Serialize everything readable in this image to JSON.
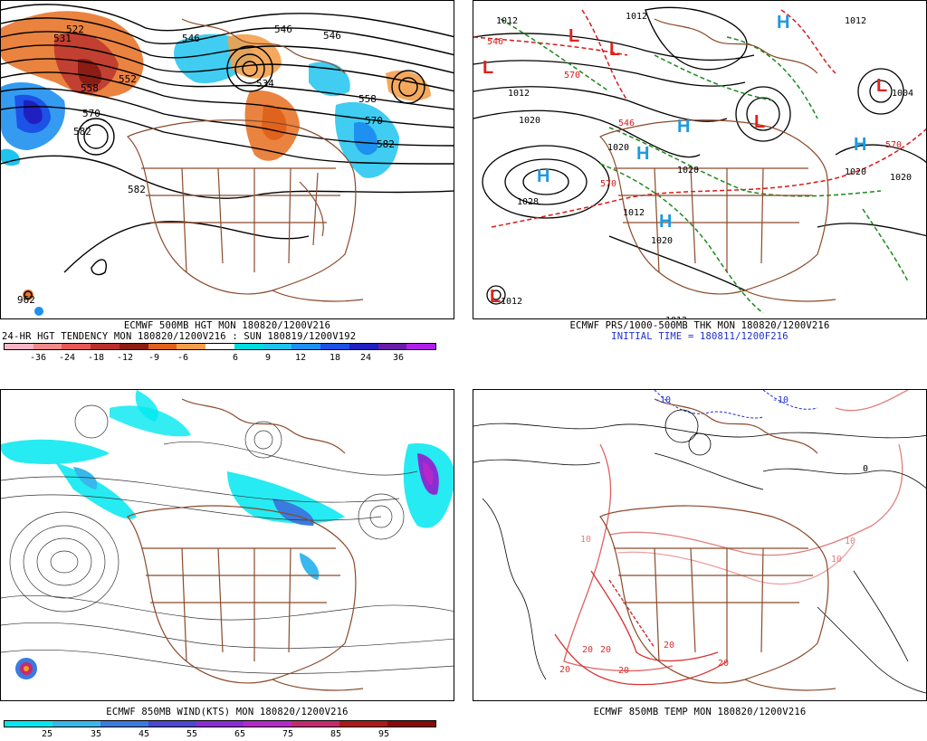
{
  "panels": {
    "top_left": {
      "height_labels": [
        "531",
        "522",
        "552",
        "558",
        "570",
        "582",
        "546",
        "546",
        "546",
        "534",
        "558",
        "570",
        "582",
        "582",
        "582"
      ],
      "caption_line1": "ECMWF 500MB HGT MON 180820/1200V216",
      "caption_line2": "24-HR HGT TENDENCY MON 180820/1200V216 : SUN 180819/1200V192",
      "colorbar_ticks": [
        "-36",
        "-24",
        "-18",
        "-12",
        "-9",
        "-6",
        "6",
        "9",
        "12",
        "18",
        "24",
        "36"
      ],
      "colorbar_colors": [
        "#f7b7c7",
        "#f08b8b",
        "#e85757",
        "#b8302e",
        "#8c1d14",
        "#e0631d",
        "#f3a04c",
        "#ffffff",
        "#00dde0",
        "#1fc4ee",
        "#1e90f0",
        "#1c52e6",
        "#2020c0",
        "#6a1ca8",
        "#b020e8"
      ],
      "low_label": "962"
    },
    "top_right": {
      "pressure_labels": [
        "1012",
        "1012",
        "1012",
        "1012",
        "1020",
        "1020",
        "1020",
        "1028",
        "1020",
        "1020",
        "1004",
        "1012",
        "1020",
        "1012",
        "1012"
      ],
      "high_letters": [
        "H",
        "H",
        "H",
        "H",
        "H",
        "H"
      ],
      "low_letters": [
        "L",
        "L",
        "L",
        "L",
        "L",
        "L"
      ],
      "thickness_labels": [
        "546",
        "570",
        "570",
        "570",
        "546"
      ],
      "caption_line1": "ECMWF PRS/1000-500MB THK MON 180820/1200V216",
      "caption_line2": "INITIAL TIME = 180811/1200F216"
    },
    "bottom_left": {
      "caption_line1": "ECMWF 850MB WIND(KTS) MON 180820/1200V216",
      "colorbar_ticks": [
        "25",
        "35",
        "45",
        "55",
        "65",
        "75",
        "85",
        "95"
      ],
      "colorbar_colors": [
        "#00e8f0",
        "#38b8ec",
        "#3a7be0",
        "#4d47d6",
        "#8a2ed4",
        "#b529c8",
        "#c62a6e",
        "#b01818",
        "#8a0a0a"
      ]
    },
    "bottom_right": {
      "temp_labels": [
        "20",
        "20",
        "20",
        "20",
        "20",
        "20",
        "10",
        "10",
        "10",
        "0",
        "-10",
        "-10"
      ],
      "caption_line1": "ECMWF 850MB TEMP MON 180820/1200V216"
    }
  }
}
